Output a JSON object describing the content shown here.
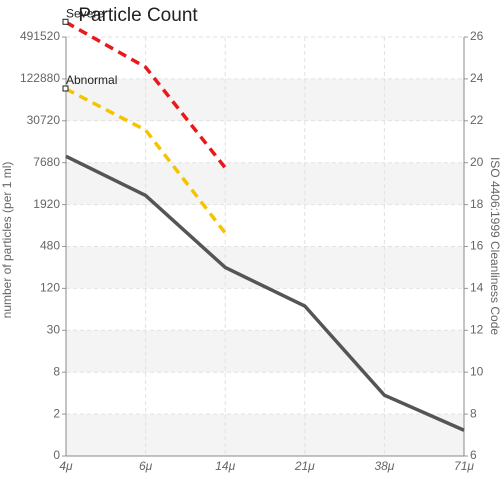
{
  "chart_data": {
    "type": "line",
    "title": "Particle Count",
    "ylabel": "number of particles (per 1 ml)",
    "y2label": "ISO 4406:1999 Cleanliness Code",
    "categories": [
      "4μ",
      "6μ",
      "14μ",
      "21μ",
      "38μ",
      "71μ"
    ],
    "log_scale": true,
    "grid": true,
    "ylim": [
      0.46875,
      491520
    ],
    "yticks": [
      491520,
      122880,
      30720,
      7680,
      1920,
      480,
      120,
      30,
      {
        "value": 7.5,
        "label": "8"
      },
      {
        "value": 1.875,
        "label": "2"
      },
      {
        "value": 0.46875,
        "label": "0"
      }
    ],
    "yticks_labels_fmt": null,
    "y2lim": [
      6,
      26
    ],
    "y2ticks": [
      6,
      8,
      10,
      12,
      14,
      16,
      18,
      20,
      22,
      24,
      26
    ],
    "series": [
      {
        "name": "Severe",
        "color": "#e8191b",
        "dashed": true,
        "values": [
          800000,
          181000,
          6500,
          null,
          null,
          null
        ]
      },
      {
        "name": "Abnormal",
        "color": "#f5c400",
        "dashed": true,
        "values": [
          88000,
          22600,
          750,
          null,
          null,
          null
        ]
      },
      {
        "color": "#555555",
        "dashed": false,
        "values": [
          9500,
          2600,
          240,
          67,
          3.5,
          1.1
        ]
      }
    ]
  }
}
